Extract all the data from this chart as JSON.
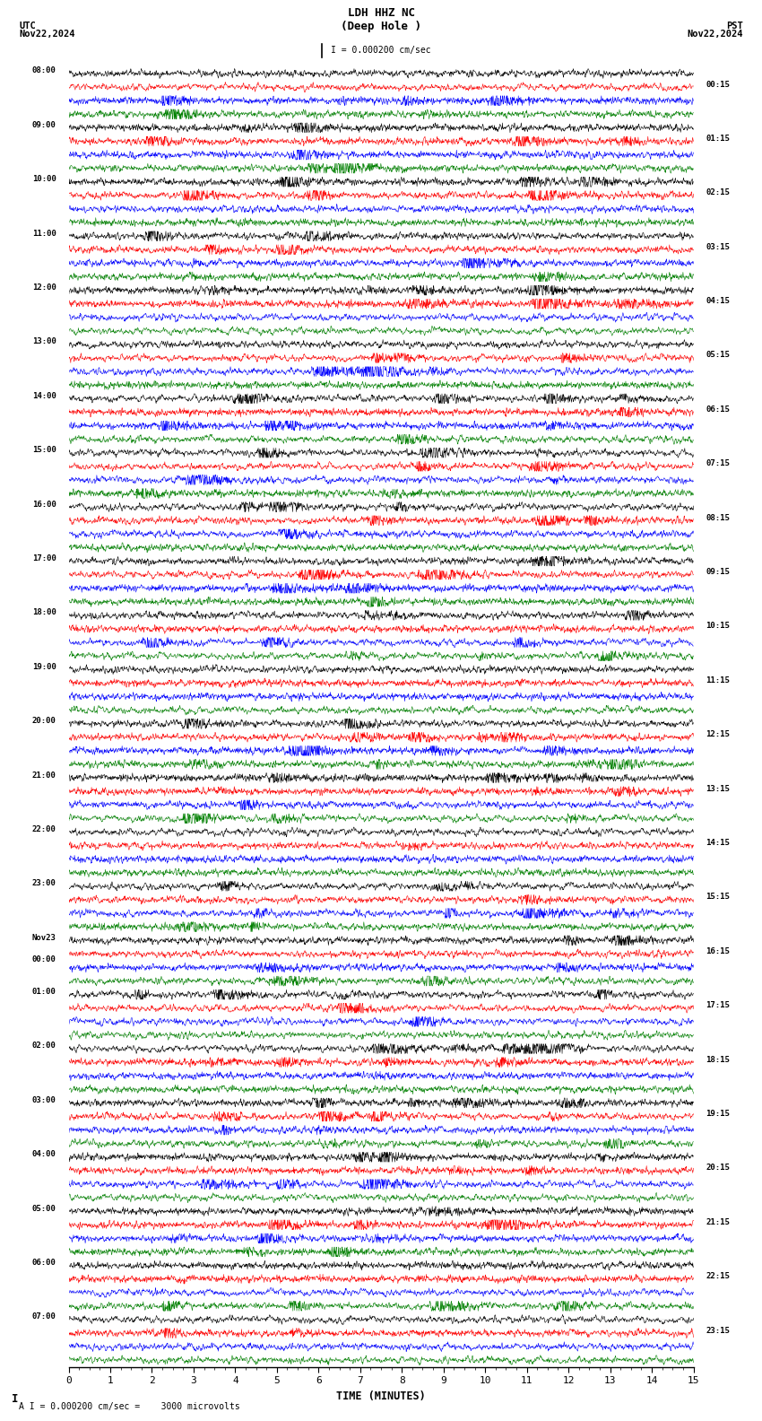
{
  "title_line1": "LDH HHZ NC",
  "title_line2": "(Deep Hole )",
  "scale_label": "I = 0.000200 cm/sec",
  "footer_label": "A I = 0.000200 cm/sec =    3000 microvolts",
  "utc_label": "UTC",
  "pst_label": "PST",
  "date_left": "Nov22,2024",
  "date_right": "Nov22,2024",
  "xlabel": "TIME (MINUTES)",
  "bg_color": "#ffffff",
  "trace_colors": [
    "black",
    "red",
    "blue",
    "green"
  ],
  "left_times": [
    "08:00",
    "09:00",
    "10:00",
    "11:00",
    "12:00",
    "13:00",
    "14:00",
    "15:00",
    "16:00",
    "17:00",
    "18:00",
    "19:00",
    "20:00",
    "21:00",
    "22:00",
    "23:00",
    "Nov23\n00:00",
    "01:00",
    "02:00",
    "03:00",
    "04:00",
    "05:00",
    "06:00",
    "07:00"
  ],
  "right_times": [
    "00:15",
    "01:15",
    "02:15",
    "03:15",
    "04:15",
    "05:15",
    "06:15",
    "07:15",
    "08:15",
    "09:15",
    "10:15",
    "11:15",
    "12:15",
    "13:15",
    "14:15",
    "15:15",
    "16:15",
    "17:15",
    "18:15",
    "19:15",
    "20:15",
    "21:15",
    "22:15",
    "23:15"
  ],
  "num_hour_groups": 24,
  "traces_per_group": 4,
  "minutes_per_row": 15,
  "amplitude": 0.3,
  "noise_seed": 42
}
